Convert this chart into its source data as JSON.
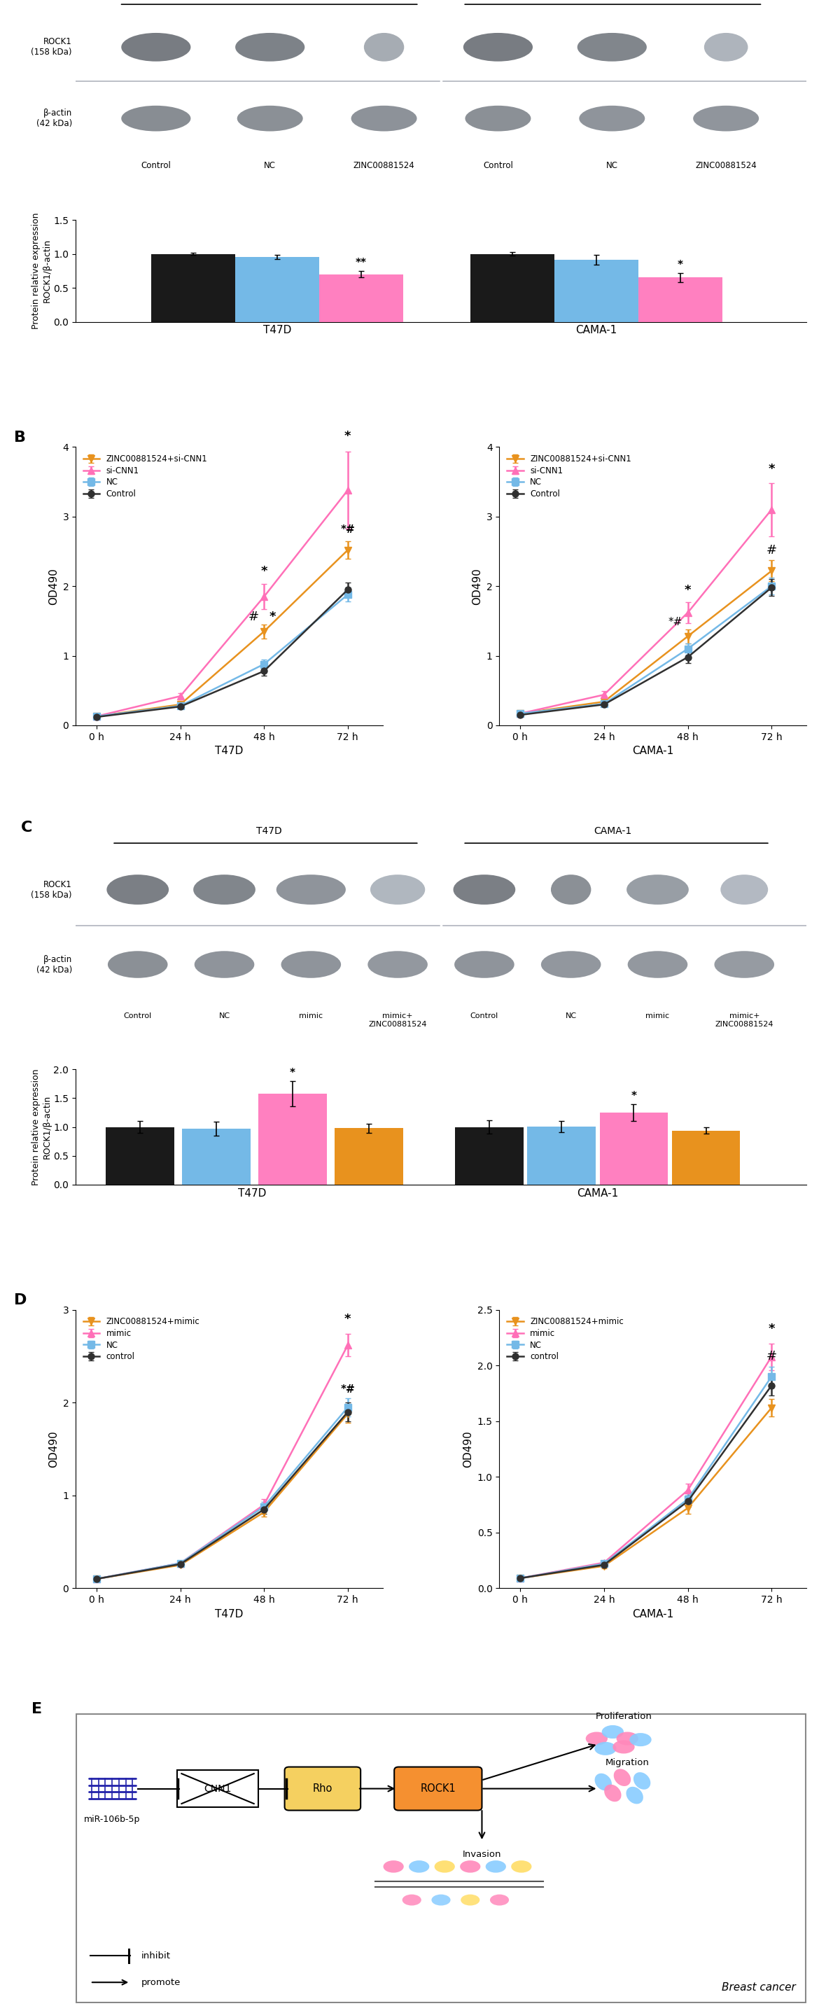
{
  "panel_A": {
    "bar_categories": [
      "Control",
      "NC",
      "ZINC00881524"
    ],
    "bar_colors": [
      "#1a1a1a",
      "#74b9e7",
      "#ff80c0"
    ],
    "T47D_values": [
      1.0,
      0.95,
      0.7
    ],
    "T47D_errors": [
      0.02,
      0.03,
      0.05
    ],
    "CAMA1_values": [
      1.0,
      0.91,
      0.65
    ],
    "CAMA1_errors": [
      0.03,
      0.07,
      0.07
    ],
    "ylabel": "Protein relative expression\nROCK1/β-actin",
    "ylim": [
      0.0,
      1.5
    ],
    "yticks": [
      0.0,
      0.5,
      1.0,
      1.5
    ],
    "significance_T47D": [
      "",
      "",
      "**"
    ],
    "significance_CAMA1": [
      "",
      "",
      "*"
    ],
    "wb_bg": "#c8ccd5",
    "wb_row_sep": "#a0a4ad",
    "wb_A_intensities_top": [
      0.72,
      0.68,
      0.38,
      0.72,
      0.65,
      0.32
    ],
    "wb_A_intensities_bot": [
      0.6,
      0.58,
      0.56,
      0.58,
      0.55,
      0.54
    ],
    "wb_A_widths_top": [
      0.095,
      0.095,
      0.055,
      0.095,
      0.095,
      0.06
    ],
    "wb_A_widths_bot": [
      0.095,
      0.09,
      0.09,
      0.09,
      0.09,
      0.09
    ]
  },
  "panel_B": {
    "timepoints": [
      0,
      24,
      48,
      72
    ],
    "series_labels": [
      "ZINC00881524+si-CNN1",
      "si-CNN1",
      "NC",
      "Control"
    ],
    "series_colors": [
      "#e8921e",
      "#ff70b8",
      "#74b9e7",
      "#303030"
    ],
    "series_markers": [
      "v",
      "^",
      "s",
      "o"
    ],
    "T47D_values": [
      [
        0.13,
        0.3,
        1.35,
        2.52
      ],
      [
        0.13,
        0.42,
        1.85,
        3.38
      ],
      [
        0.13,
        0.28,
        0.88,
        1.88
      ],
      [
        0.12,
        0.27,
        0.78,
        1.95
      ]
    ],
    "T47D_errors": [
      [
        0.015,
        0.025,
        0.1,
        0.13
      ],
      [
        0.015,
        0.045,
        0.18,
        0.55
      ],
      [
        0.015,
        0.025,
        0.07,
        0.1
      ],
      [
        0.015,
        0.025,
        0.07,
        0.1
      ]
    ],
    "CAMA1_values": [
      [
        0.17,
        0.34,
        1.28,
        2.22
      ],
      [
        0.17,
        0.44,
        1.62,
        3.1
      ],
      [
        0.17,
        0.31,
        1.1,
        2.0
      ],
      [
        0.15,
        0.3,
        0.98,
        1.98
      ]
    ],
    "CAMA1_errors": [
      [
        0.015,
        0.03,
        0.1,
        0.15
      ],
      [
        0.015,
        0.05,
        0.15,
        0.38
      ],
      [
        0.015,
        0.025,
        0.08,
        0.12
      ],
      [
        0.015,
        0.025,
        0.08,
        0.12
      ]
    ],
    "ylabel": "OD490",
    "T47D_ylim": [
      0,
      4
    ],
    "CAMA1_ylim": [
      0,
      4
    ],
    "T47D_yticks": [
      0,
      1,
      2,
      3,
      4
    ],
    "CAMA1_yticks": [
      0,
      1,
      2,
      3,
      4
    ],
    "xlabel_left": "T47D",
    "xlabel_right": "CAMA-1"
  },
  "panel_C": {
    "bar_categories": [
      "Control",
      "NC",
      "mimic",
      "mimic+zinc"
    ],
    "bar_colors": [
      "#1a1a1a",
      "#74b9e7",
      "#ff80c0",
      "#e8921e"
    ],
    "T47D_values": [
      1.0,
      0.97,
      1.58,
      0.98
    ],
    "T47D_errors": [
      0.1,
      0.12,
      0.22,
      0.08
    ],
    "CAMA1_values": [
      1.0,
      1.01,
      1.25,
      0.94
    ],
    "CAMA1_errors": [
      0.12,
      0.1,
      0.15,
      0.06
    ],
    "ylabel": "Protein relative expression\nROCK1/β-actin",
    "ylim": [
      0.0,
      2.0
    ],
    "yticks": [
      0.0,
      0.5,
      1.0,
      1.5,
      2.0
    ],
    "significance_T47D": [
      "",
      "",
      "*",
      ""
    ],
    "significance_CAMA1": [
      "",
      "",
      "*",
      ""
    ],
    "wb_C_intensities_top": [
      0.7,
      0.65,
      0.55,
      0.3,
      0.7,
      0.58,
      0.48,
      0.28
    ],
    "wb_C_intensities_bot": [
      0.58,
      0.55,
      0.55,
      0.52,
      0.55,
      0.53,
      0.52,
      0.5
    ],
    "wb_C_widths_top": [
      0.085,
      0.085,
      0.095,
      0.075,
      0.085,
      0.055,
      0.085,
      0.065
    ]
  },
  "panel_D": {
    "timepoints": [
      0,
      24,
      48,
      72
    ],
    "series_labels": [
      "ZINC00881524+mimic",
      "mimic",
      "NC",
      "control"
    ],
    "series_colors": [
      "#e8921e",
      "#ff70b8",
      "#74b9e7",
      "#303030"
    ],
    "series_markers": [
      "v",
      "^",
      "s",
      "o"
    ],
    "T47D_values": [
      [
        0.1,
        0.25,
        0.82,
        1.88
      ],
      [
        0.1,
        0.27,
        0.9,
        2.62
      ],
      [
        0.1,
        0.27,
        0.88,
        1.95
      ],
      [
        0.1,
        0.26,
        0.85,
        1.9
      ]
    ],
    "T47D_errors": [
      [
        0.01,
        0.02,
        0.05,
        0.1
      ],
      [
        0.01,
        0.02,
        0.06,
        0.12
      ],
      [
        0.01,
        0.02,
        0.05,
        0.1
      ],
      [
        0.01,
        0.02,
        0.05,
        0.1
      ]
    ],
    "CAMA1_values": [
      [
        0.09,
        0.2,
        0.72,
        1.62
      ],
      [
        0.09,
        0.23,
        0.88,
        2.08
      ],
      [
        0.09,
        0.22,
        0.8,
        1.9
      ],
      [
        0.09,
        0.21,
        0.78,
        1.82
      ]
    ],
    "CAMA1_errors": [
      [
        0.01,
        0.02,
        0.05,
        0.08
      ],
      [
        0.01,
        0.02,
        0.06,
        0.12
      ],
      [
        0.01,
        0.02,
        0.05,
        0.09
      ],
      [
        0.01,
        0.02,
        0.05,
        0.09
      ]
    ],
    "ylabel": "OD490",
    "T47D_ylim": [
      0,
      3
    ],
    "CAMA1_ylim": [
      0,
      2.5
    ],
    "T47D_yticks": [
      0,
      1,
      2,
      3
    ],
    "CAMA1_yticks": [
      0.0,
      0.5,
      1.0,
      1.5,
      2.0,
      2.5
    ],
    "xlabel_left": "T47D",
    "xlabel_right": "CAMA-1"
  }
}
